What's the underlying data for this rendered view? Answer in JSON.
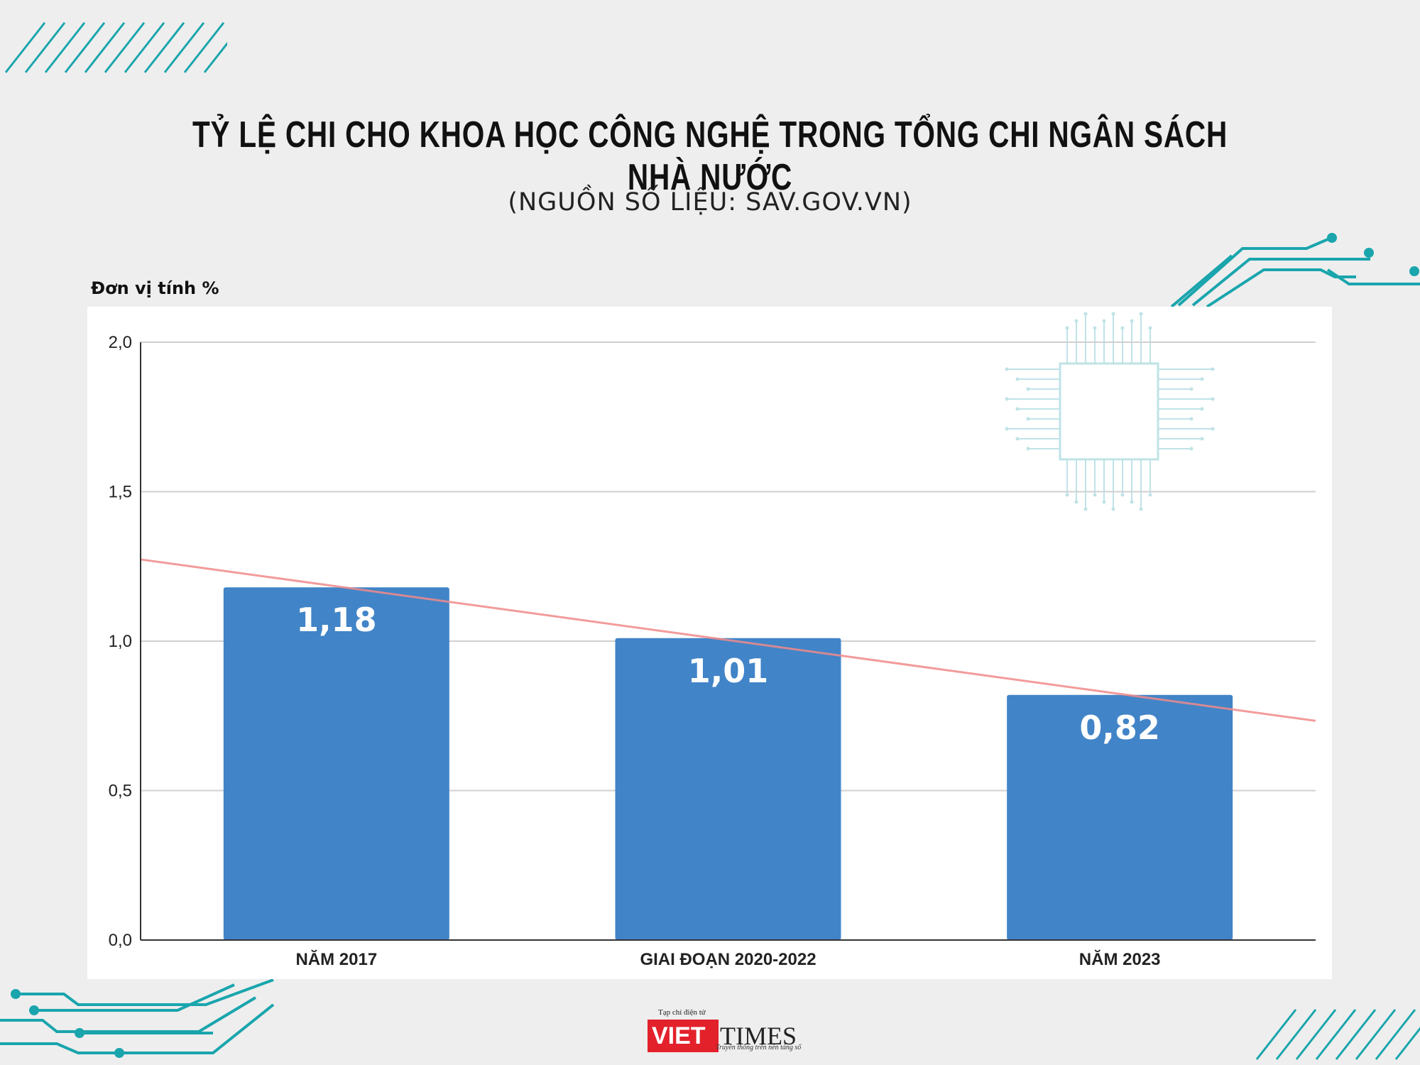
{
  "header": {
    "title": "TỶ LỆ CHI CHO KHOA HỌC CÔNG NGHỆ TRONG TỔNG CHI NGÂN SÁCH NHÀ NƯỚC",
    "subtitle": "(NGUỒN SỐ LIỆU: SAV.GOV.VN)"
  },
  "unit_label": "Đơn vị tính %",
  "chart_data": {
    "type": "bar",
    "title": "TỶ LỆ CHI CHO KHOA HỌC CÔNG NGHỆ TRONG TỔNG CHI NGÂN SÁCH NHÀ NƯỚC",
    "subtitle": "(NGUỒN SỐ LIỆU: SAV.GOV.VN)",
    "ylabel": "Đơn vị tính %",
    "xlabel": "",
    "categories": [
      "NĂM 2017",
      "GIAI ĐOẠN 2020-2022",
      "NĂM 2023"
    ],
    "values": [
      1.18,
      1.01,
      0.82
    ],
    "value_labels": [
      "1,18",
      "1,01",
      "0,82"
    ],
    "ylim": [
      0,
      2.0
    ],
    "yticks": [
      0.0,
      0.5,
      1.0,
      1.5,
      2.0
    ],
    "ytick_labels": [
      "0,0",
      "0,5",
      "1,0",
      "1,5",
      "2,0"
    ],
    "grid": true,
    "legend": "none",
    "trendline": {
      "type": "linear",
      "color": "#f08a8a"
    },
    "colors": {
      "bar": "#4184c8",
      "trend": "#f08a8a",
      "grid": "#d0d0d0",
      "axis": "#333333"
    }
  },
  "logo": {
    "small_text": "Tạp chí điện tử",
    "brand_red": "VIET",
    "brand_black": "TIMES",
    "tagline": "Truyền thông trên nền tảng số",
    "colors": {
      "red": "#e3212b"
    }
  },
  "decoration": {
    "chip_icon": "circuit-chip-icon",
    "accent_color": "#1aa5ad"
  }
}
